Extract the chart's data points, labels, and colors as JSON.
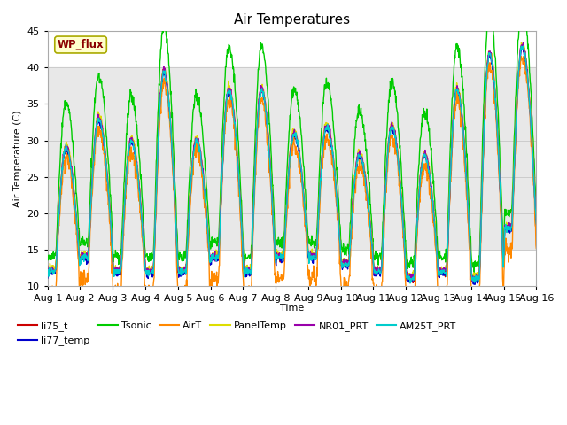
{
  "title": "Air Temperatures",
  "xlabel": "Time",
  "ylabel": "Air Temperature (C)",
  "ylim": [
    10,
    45
  ],
  "xlim": [
    0,
    15
  ],
  "xtick_labels": [
    "Aug 1",
    "Aug 2",
    "Aug 3",
    "Aug 4",
    "Aug 5",
    "Aug 6",
    "Aug 7",
    "Aug 8",
    "Aug 9",
    "Aug 10",
    "Aug 11",
    "Aug 12",
    "Aug 13",
    "Aug 14",
    "Aug 15",
    "Aug 16"
  ],
  "shaded_band": [
    15,
    40
  ],
  "annotation_text": "WP_flux",
  "annotation_box_color": "#ffffcc",
  "annotation_text_color": "#8b0000",
  "series_colors": {
    "li75_t": "#cc0000",
    "li77_temp": "#0000cc",
    "Tsonic": "#00cc00",
    "AirT": "#ff8800",
    "PanelTemp": "#dddd00",
    "NR01_PRT": "#9900aa",
    "AM25T_PRT": "#00cccc"
  },
  "background_color": "#ffffff",
  "plot_bg_color": "#ffffff",
  "shaded_band_color": "#e8e8e8",
  "grid_color": "#cccccc",
  "day_maxes": [
    29,
    33,
    30,
    39.5,
    30,
    37,
    37,
    31,
    32,
    28,
    32,
    28,
    37,
    42,
    43
  ],
  "day_mins": [
    12,
    14,
    12,
    12,
    12,
    14,
    12,
    14,
    14,
    13,
    12,
    11,
    12,
    11,
    18
  ]
}
